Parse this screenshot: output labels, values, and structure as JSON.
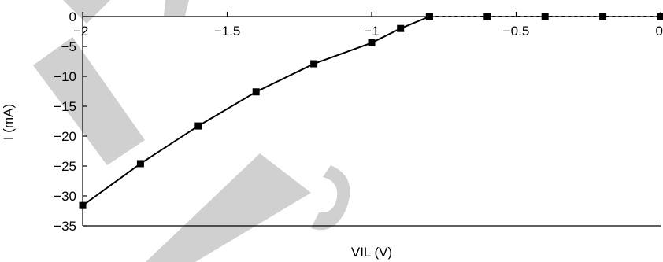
{
  "chart_data": {
    "type": "line",
    "xlabel": "VIL (V)",
    "ylabel": "I (mA)",
    "xlim": [
      -2,
      0
    ],
    "ylim": [
      -35,
      0
    ],
    "x_ticks": [
      -2,
      -1.5,
      -1,
      -0.5,
      0
    ],
    "x_tick_labels": [
      "−2",
      "−1.5",
      "−1",
      "−0.5",
      "0"
    ],
    "y_ticks": [
      0,
      -5,
      -10,
      -15,
      -20,
      -25,
      -30,
      -35
    ],
    "y_tick_labels": [
      "0",
      "−5",
      "−10",
      "−15",
      "−20",
      "−25",
      "−30",
      "−35"
    ],
    "grid": false,
    "series": [
      {
        "line_style": "solid",
        "marker": "square",
        "color": "#000000",
        "x": [
          -2.0,
          -1.8,
          -1.6,
          -1.4,
          -1.2,
          -1.0,
          -0.9,
          -0.8
        ],
        "y": [
          -31.6,
          -24.6,
          -18.3,
          -12.6,
          -7.9,
          -4.4,
          -2.0,
          0.0
        ]
      },
      {
        "line_style": "dashed",
        "marker": "square",
        "color": "#000000",
        "x": [
          -0.8,
          -0.6,
          -0.4,
          -0.2,
          0.0
        ],
        "y": [
          0.0,
          0.0,
          0.0,
          0.0,
          0.0
        ]
      }
    ]
  },
  "watermark": {
    "description": "light gray diagonal shapes",
    "color": "#c8c8c8"
  }
}
